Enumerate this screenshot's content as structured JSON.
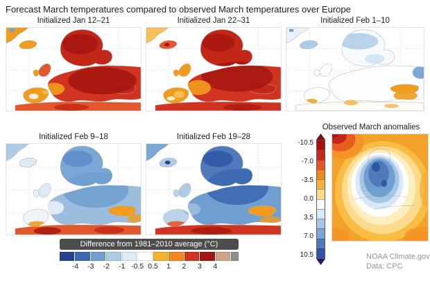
{
  "title": "Forecast March temperatures compared to observed March temperatures over Europe",
  "panels": [
    {
      "id": "jan-12-21",
      "label": "Initialized Jan 12–21",
      "dominant_anomaly": "much warmer than average over most of Europe"
    },
    {
      "id": "jan-22-31",
      "label": "Initialized Jan 22–31",
      "dominant_anomaly": "much warmer than average over most of Europe"
    },
    {
      "id": "feb-1-10",
      "label": "Initialized Feb 1–10",
      "dominant_anomaly": "near average; slightly cool north, slightly warm southeast"
    },
    {
      "id": "feb-9-18",
      "label": "Initialized Feb 9–18",
      "dominant_anomaly": "cooler than average over Europe, warm along the far south"
    },
    {
      "id": "feb-19-28",
      "label": "Initialized Feb 19–28",
      "dominant_anomaly": "much cooler than average over Europe, warm along the far south"
    }
  ],
  "observed_panel": {
    "label": "Observed March anomalies",
    "dominant_anomaly": "cooler than average over most of Europe, warmer around the map edges",
    "scale": {
      "ticks": [
        "-10.5",
        "-7.0",
        "-3.5",
        "0.0",
        "3.5",
        "7.0",
        "10.5"
      ],
      "colors_top_to_bottom": [
        "#a6120e",
        "#c8281a",
        "#e2572c",
        "#f0881f",
        "#f6b23c",
        "#fdda8c",
        "#ffffff",
        "#d9e8f5",
        "#a5c6e4",
        "#7aa8d6",
        "#4f79bb",
        "#2f55a4"
      ],
      "arrow_top_color": "#7d0e0c",
      "arrow_bottom_color": "#27186b"
    }
  },
  "colorbar": {
    "title": "Difference from 1981–2010 average (°C)",
    "ticks": [
      "-4",
      "-3",
      "-2",
      "-1",
      "-0.5",
      "0.5",
      "1",
      "2",
      "3",
      "4"
    ],
    "colors": [
      "#27418e",
      "#3c68b0",
      "#6f9fd0",
      "#aecbe6",
      "#dcebf5",
      "#ffffff",
      "#f6b32c",
      "#f0881f",
      "#d0331f",
      "#a01713",
      "#cfa28b",
      "#8f8f8f"
    ],
    "title_bg": "#4d4d4d"
  },
  "credits": {
    "source": "NOAA Climate.gov",
    "data_source": "Data: CPC"
  }
}
